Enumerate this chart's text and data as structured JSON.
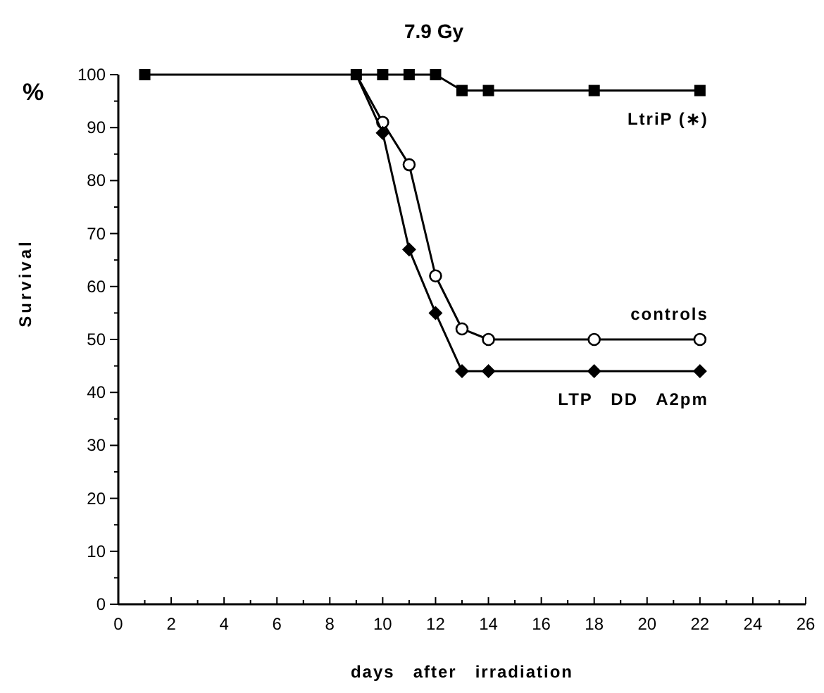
{
  "chart_data": {
    "type": "line",
    "title": "7.9 Gy",
    "xlabel": "days   after   irradiation",
    "ylabel": "Survival",
    "annotations": [
      "%"
    ],
    "xlim": [
      0,
      26
    ],
    "ylim": [
      0,
      100
    ],
    "xticks": [
      0,
      {
        "value": 1,
        "label": null
      },
      2,
      {
        "value": 3,
        "label": null
      },
      4,
      {
        "value": 5,
        "label": null
      },
      6,
      {
        "value": 7,
        "label": null
      },
      8,
      {
        "value": 9,
        "label": null
      },
      10,
      {
        "value": 11,
        "label": null
      },
      12,
      {
        "value": 13,
        "label": null
      },
      14,
      {
        "value": 15,
        "label": null
      },
      16,
      {
        "value": 17,
        "label": null
      },
      18,
      {
        "value": 19,
        "label": null
      },
      20,
      {
        "value": 21,
        "label": null
      },
      22,
      {
        "value": 23,
        "label": null
      },
      24,
      {
        "value": 25,
        "label": null
      },
      26
    ],
    "yticks": [
      0,
      {
        "value": 5,
        "label": null
      },
      10,
      {
        "value": 15,
        "label": null
      },
      20,
      {
        "value": 25,
        "label": null
      },
      30,
      {
        "value": 35,
        "label": null
      },
      40,
      {
        "value": 45,
        "label": null
      },
      50,
      {
        "value": 55,
        "label": null
      },
      60,
      {
        "value": 65,
        "label": null
      },
      70,
      {
        "value": 75,
        "label": null
      },
      80,
      {
        "value": 85,
        "label": null
      },
      90,
      {
        "value": 95,
        "label": null
      },
      100
    ],
    "grid": false,
    "legend": false,
    "line_style": "solid",
    "series": [
      {
        "name": "LtriP (∗)",
        "color": "#000000",
        "marker": "square",
        "x": [
          1,
          9,
          10,
          11,
          12,
          13,
          14,
          18,
          22
        ],
        "values": [
          100,
          100,
          100,
          100,
          100,
          97,
          97,
          97,
          97
        ]
      },
      {
        "name": "controls",
        "color": "#000000",
        "marker": "circle",
        "x": [
          9,
          10,
          11,
          12,
          13,
          14,
          18,
          22
        ],
        "values": [
          100,
          91,
          83,
          62,
          52,
          50,
          50,
          50
        ]
      },
      {
        "name": "LTP   DD   A2pm",
        "color": "#000000",
        "marker": "diamond",
        "x": [
          9,
          10,
          11,
          12,
          13,
          14,
          18,
          22
        ],
        "values": [
          100,
          89,
          67,
          55,
          44,
          44,
          44,
          44
        ]
      }
    ]
  }
}
